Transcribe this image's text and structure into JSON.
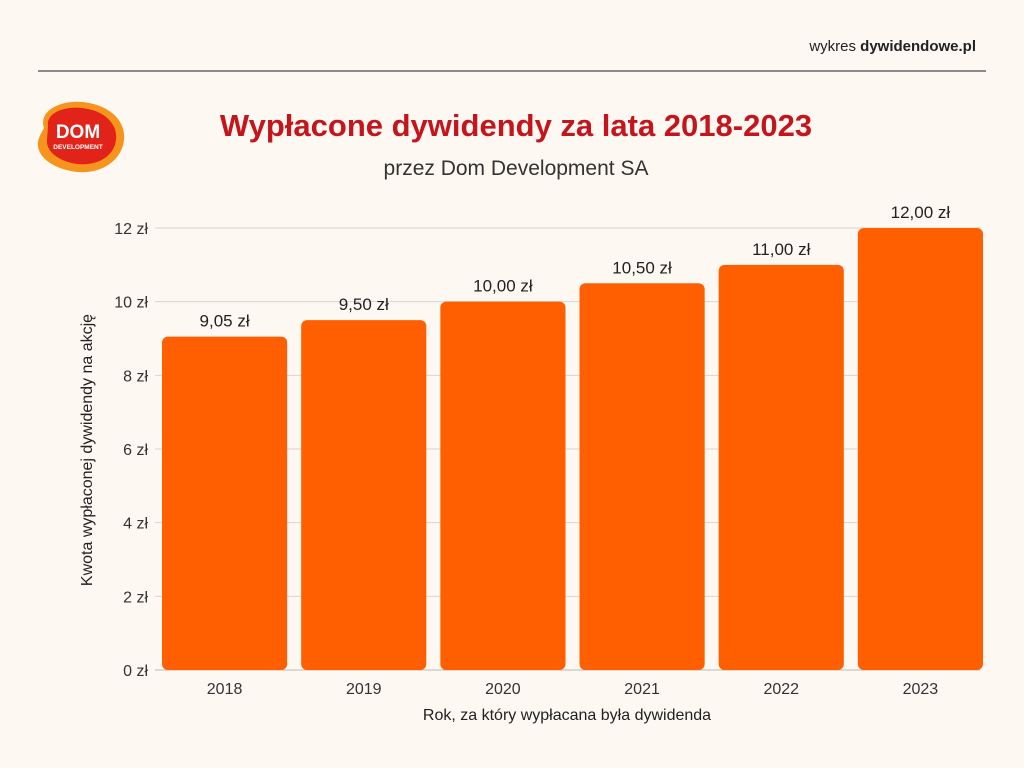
{
  "header": {
    "brand_prefix": "wykres ",
    "brand_site": "dywidendowe.pl"
  },
  "logo": {
    "text_top": "DOM",
    "text_bottom": "DEVELOPMENT",
    "colors": {
      "outer": "#f7941d",
      "inner": "#e2231a"
    }
  },
  "colors": {
    "bar": "#ff5f00",
    "title": "#c4151c",
    "background": "#fdf8f2",
    "grid": "#d9d5cf"
  },
  "chart_data": {
    "type": "bar",
    "title": "Wypłacone dywidendy za lata 2018-2023",
    "subtitle": "przez Dom Development SA",
    "xlabel": "Rok, za który wypłacana była dywidenda",
    "ylabel": "Kwota wypłaconej dywidendy na akcję",
    "categories": [
      "2018",
      "2019",
      "2020",
      "2021",
      "2022",
      "2023"
    ],
    "values": [
      9.05,
      9.5,
      10.0,
      10.5,
      11.0,
      12.0
    ],
    "value_labels": [
      "9,05 zł",
      "9,50 zł",
      "10,00 zł",
      "10,50 zł",
      "11,00 zł",
      "12,00 zł"
    ],
    "ylim": [
      0,
      12
    ],
    "yticks": [
      0,
      2,
      4,
      6,
      8,
      10,
      12
    ],
    "ytick_labels": [
      "0 zł",
      "2 zł",
      "4 zł",
      "6 zł",
      "8 zł",
      "10 zł",
      "12 zł"
    ],
    "grid": true
  }
}
